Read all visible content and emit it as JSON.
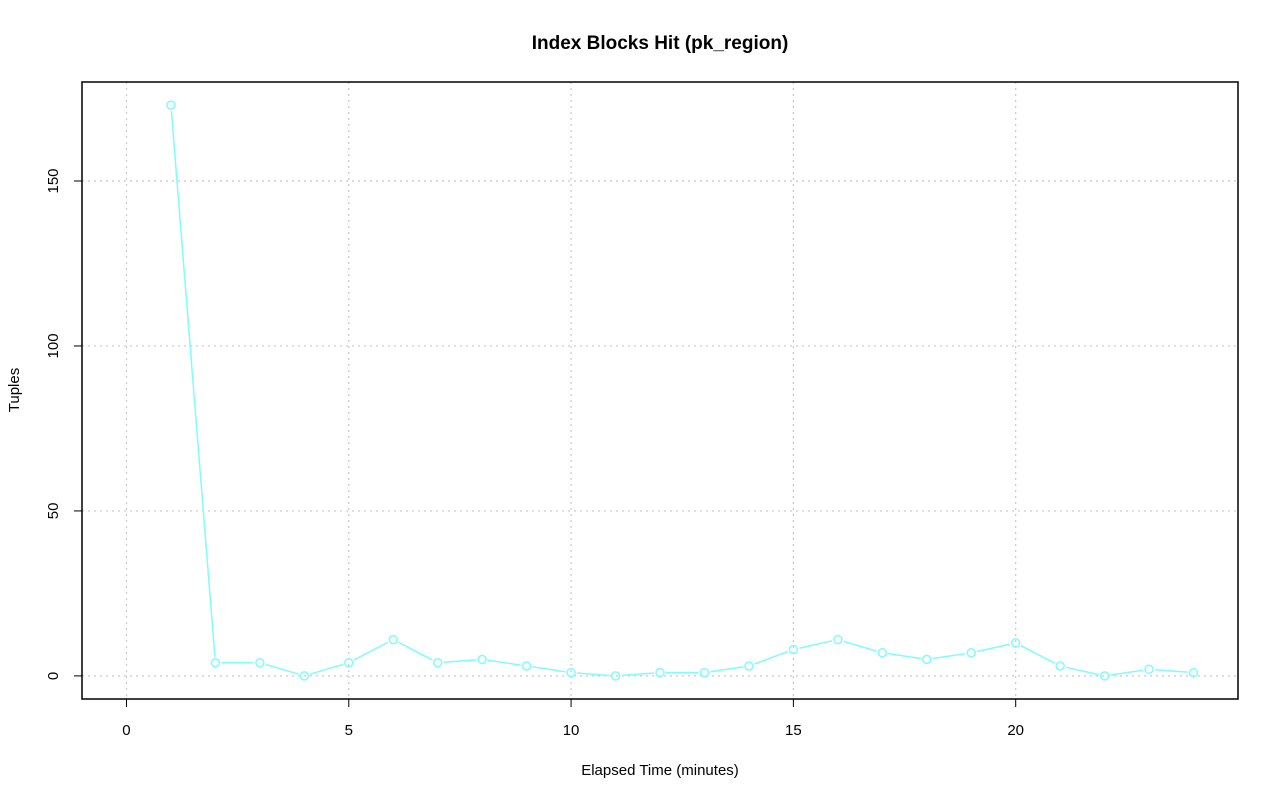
{
  "chart_data": {
    "type": "line",
    "title": "Index Blocks Hit (pk_region)",
    "xlabel": "Elapsed Time (minutes)",
    "ylabel": "Tuples",
    "xlim": [
      -1,
      25
    ],
    "ylim": [
      -7,
      180
    ],
    "xticks": [
      0,
      5,
      10,
      15,
      20
    ],
    "yticks": [
      0,
      50,
      100,
      150
    ],
    "grid": true,
    "series": [
      {
        "color": "#7ffcfc",
        "x": [
          1,
          2,
          3,
          4,
          5,
          6,
          7,
          8,
          9,
          10,
          11,
          12,
          13,
          14,
          15,
          16,
          17,
          18,
          19,
          20,
          21,
          22,
          23,
          24
        ],
        "values": [
          173,
          4,
          4,
          0,
          4,
          11,
          4,
          5,
          3,
          1,
          0,
          1,
          1,
          3,
          8,
          11,
          7,
          5,
          7,
          10,
          3,
          0,
          2,
          1
        ]
      }
    ]
  }
}
